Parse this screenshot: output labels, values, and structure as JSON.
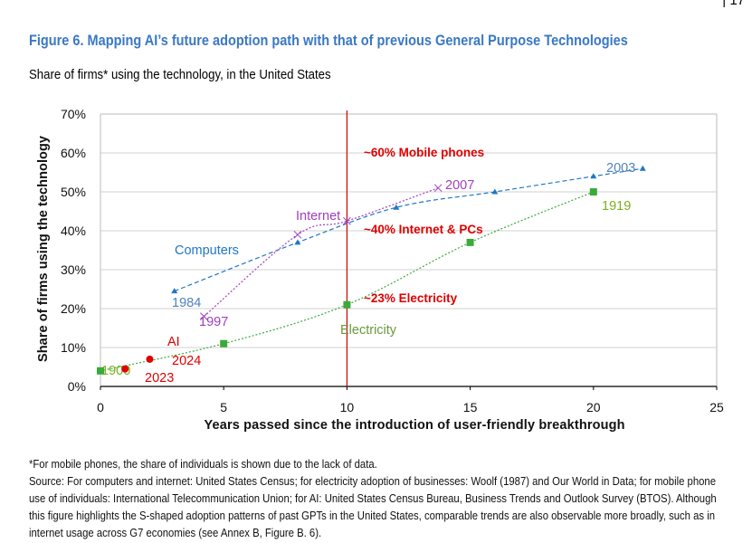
{
  "page_number": "| 17",
  "title": "Figure 6. Mapping AI’s future adoption path with that of previous General Purpose Technologies",
  "subtitle": "Share of firms* using the technology, in the United States",
  "chart_data": {
    "type": "line",
    "xlabel": "Years passed since the introduction of user-friendly breakthrough",
    "ylabel": "Share of firms using the technology",
    "xlim": [
      0,
      25
    ],
    "ylim": [
      0,
      70
    ],
    "x_ticks": [
      "0",
      "5",
      "10",
      "15",
      "20",
      "25"
    ],
    "y_ticks": [
      "0%",
      "10%",
      "20%",
      "30%",
      "40%",
      "50%",
      "60%",
      "70%"
    ],
    "grid": "horizontal",
    "reference_line_x": 10,
    "series": [
      {
        "name": "Computers",
        "color": "#1f77c4",
        "style": "dashed",
        "marker": "triangle",
        "x": [
          3,
          8,
          12,
          16,
          20,
          22
        ],
        "y": [
          24.5,
          37,
          46,
          50,
          54,
          56
        ],
        "labels": {
          "start": "1984",
          "end": "2003"
        }
      },
      {
        "name": "Internet",
        "color": "#a040c0",
        "style": "dotted",
        "marker": "x",
        "x": [
          4.2,
          8,
          10,
          13.7
        ],
        "y": [
          18,
          39,
          42.5,
          51
        ],
        "labels": {
          "start": "1997",
          "end": "2007"
        }
      },
      {
        "name": "Electricity",
        "color": "#3aaa3a",
        "style": "dotted",
        "marker": "square",
        "x": [
          0,
          5,
          10,
          15,
          20
        ],
        "y": [
          4,
          11,
          21,
          37,
          50
        ],
        "labels": {
          "start": "1900",
          "end": "1919"
        }
      },
      {
        "name": "AI",
        "color": "#e00000",
        "style": "none",
        "marker": "circle",
        "x": [
          1,
          2
        ],
        "y": [
          4.5,
          7
        ],
        "labels": {
          "start": "2023",
          "end": "2024"
        }
      }
    ],
    "annotations": [
      "~60% Mobile phones",
      "~40% Internet & PCs",
      "~23% Electricity"
    ]
  },
  "notes": {
    "footnote": "*For mobile phones, the share of individuals is shown due to the lack of data.",
    "source": "Source: For computers and internet: United States Census; for electricity adoption of businesses: Woolf (1987) and Our World in Data; for mobile phone use of individuals: International Telecommunication Union; for AI: United States Census Bureau, Business Trends and Outlook Survey (BTOS). Although this figure highlights the S-shaped adoption patterns of past GPTs in the United States, comparable trends are also observable more broadly, such as in internet usage across G7 economies (see Annex B, Figure B. 6)."
  }
}
